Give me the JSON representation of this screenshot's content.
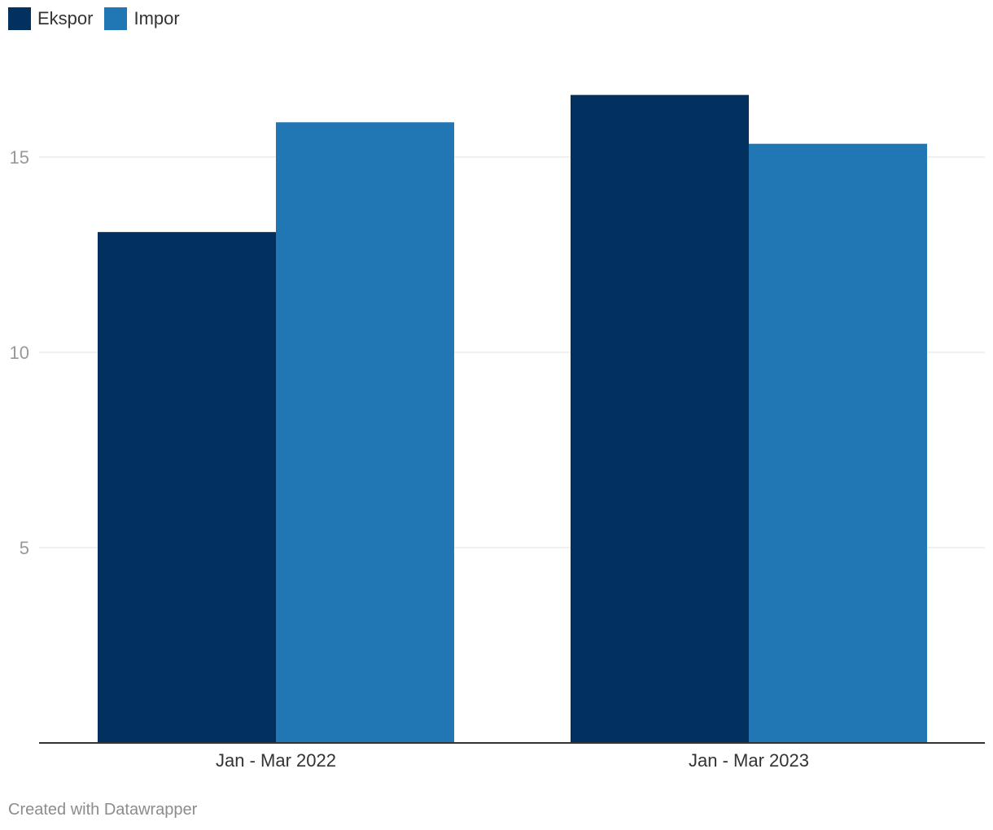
{
  "chart_data": {
    "type": "bar",
    "categories": [
      "Jan - Mar 2022",
      "Jan - Mar 2023"
    ],
    "series": [
      {
        "name": "Ekspor",
        "values": [
          13.08,
          16.59
        ],
        "color": "#02315f"
      },
      {
        "name": "Impor",
        "values": [
          15.89,
          15.34
        ],
        "color": "#2077b4"
      }
    ],
    "y_ticks": [
      "5",
      "10",
      "15"
    ],
    "ylim": [
      0,
      17
    ],
    "grid": true,
    "legend_position": "top-left",
    "title": "",
    "xlabel": "",
    "ylabel": ""
  },
  "legend": {
    "items": [
      {
        "label": "Ekspor",
        "color": "#02315f"
      },
      {
        "label": "Impor",
        "color": "#2077b4"
      }
    ]
  },
  "footer": {
    "credit": "Created with Datawrapper"
  }
}
